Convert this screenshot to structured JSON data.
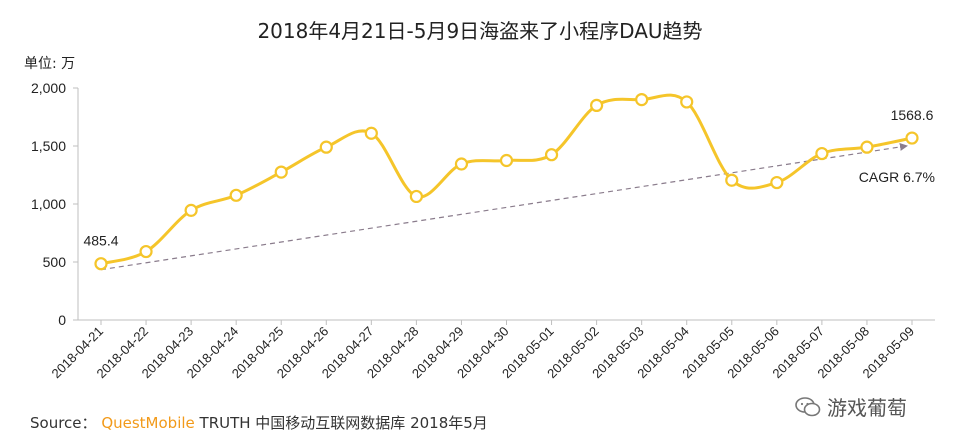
{
  "chart_data": {
    "type": "line",
    "title": "2018年4月21日-5月9日海盗来了小程序DAU趋势",
    "unit_label": "单位: 万",
    "categories": [
      "2018-04-21",
      "2018-04-22",
      "2018-04-23",
      "2018-04-24",
      "2018-04-25",
      "2018-04-26",
      "2018-04-27",
      "2018-04-28",
      "2018-04-29",
      "2018-04-30",
      "2018-05-01",
      "2018-05-02",
      "2018-05-03",
      "2018-05-04",
      "2018-05-05",
      "2018-05-06",
      "2018-05-07",
      "2018-05-08",
      "2018-05-09"
    ],
    "values": [
      485.4,
      590,
      945,
      1075,
      1275,
      1490,
      1610,
      1065,
      1345,
      1375,
      1425,
      1850,
      1900,
      1880,
      1205,
      1185,
      1435,
      1490,
      1568.6
    ],
    "ylim": [
      0,
      2000
    ],
    "yticks": [
      0,
      500,
      1000,
      1500,
      2000
    ],
    "ytick_labels": [
      "0",
      "500",
      "1,000",
      "1,500",
      "2,000"
    ],
    "data_labels": [
      {
        "index": 0,
        "text": "485.4"
      },
      {
        "index": 18,
        "text": "1568.6"
      }
    ],
    "trend": {
      "label": "CAGR 6.7%",
      "from_index": 0,
      "to_index": 18
    },
    "line_color": "#f5c52a",
    "trend_color": "#8a7c8c",
    "grid": false,
    "legend": "none"
  },
  "footer": {
    "source_label": "Source：",
    "brand": "QuestMobile",
    "rest": " TRUTH 中国移动互联网数据库 2018年5月"
  },
  "watermark": {
    "text": "游戏葡萄",
    "icon": "wechat-icon"
  }
}
